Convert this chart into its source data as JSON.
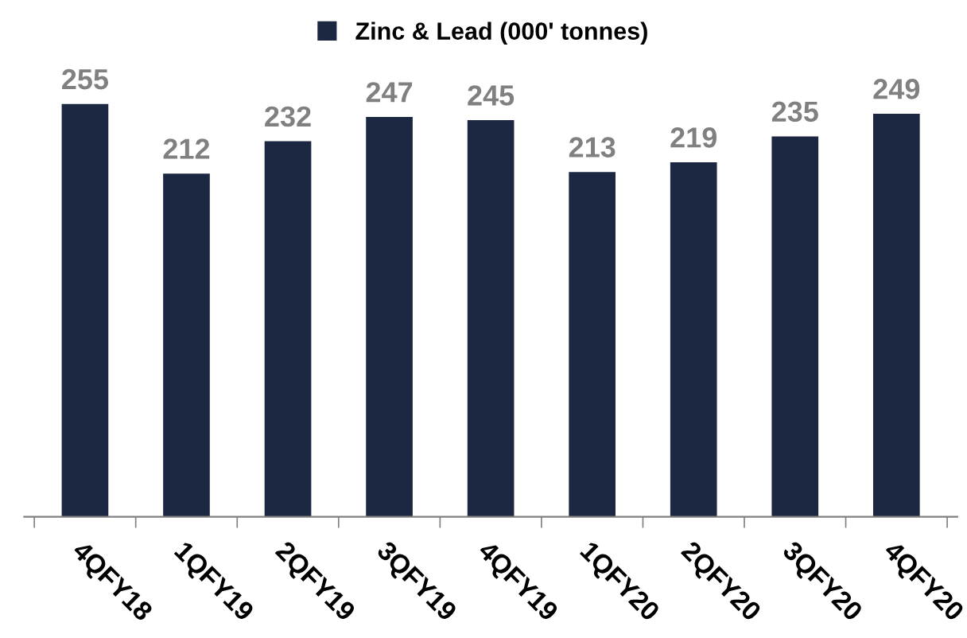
{
  "chart_data": {
    "type": "bar",
    "categories": [
      "4QFY18",
      "1QFY19",
      "2QFY19",
      "3QFY19",
      "4QFY19",
      "1QFY20",
      "2QFY20",
      "3QFY20",
      "4QFY20"
    ],
    "series": [
      {
        "name": "Zinc & Lead (000' tonnes)",
        "color": "#1c2742",
        "values": [
          255,
          212,
          232,
          247,
          245,
          213,
          219,
          235,
          249
        ]
      }
    ],
    "data_labels": true,
    "legend": "top",
    "grid": false
  }
}
